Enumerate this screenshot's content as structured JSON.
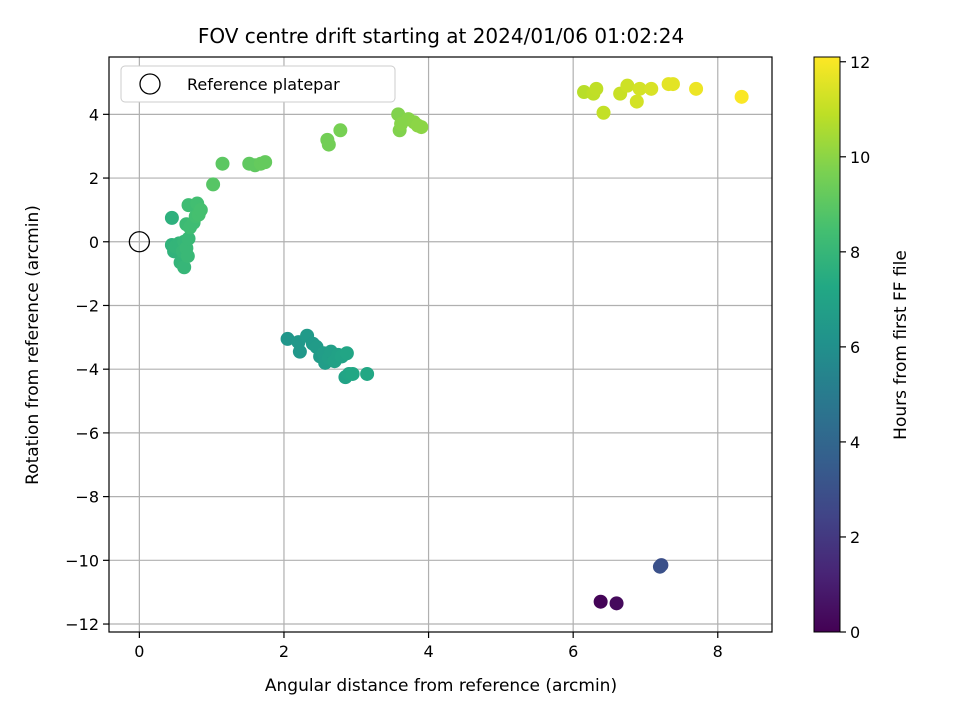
{
  "chart_data": {
    "type": "scatter",
    "title": "FOV centre drift starting at 2024/01/06 01:02:24",
    "xlabel": "Angular distance from reference (arcmin)",
    "ylabel": "Rotation from reference (arcmin)",
    "xlim": [
      -0.42,
      8.75
    ],
    "ylim": [
      -12.25,
      5.8
    ],
    "xticks": [
      0,
      2,
      4,
      6,
      8
    ],
    "yticks": [
      4,
      2,
      0,
      -2,
      -4,
      -6,
      -8,
      -10,
      -12
    ],
    "grid": true,
    "legend": {
      "placement": "upper-left",
      "entries": [
        "Reference platepar"
      ]
    },
    "reference_point": {
      "x": 0,
      "y": 0,
      "label": "Reference platepar"
    },
    "colorbar": {
      "label": "Hours from first FF file",
      "range": [
        0,
        12.1
      ],
      "ticks": [
        0,
        2,
        4,
        6,
        8,
        10,
        12
      ],
      "colormap": "viridis"
    },
    "points": [
      {
        "x": 6.38,
        "y": -11.3,
        "c": 0.1
      },
      {
        "x": 6.6,
        "y": -11.35,
        "c": 0.3
      },
      {
        "x": 7.22,
        "y": -10.15,
        "c": 2.9
      },
      {
        "x": 7.2,
        "y": -10.2,
        "c": 3.0
      },
      {
        "x": 2.05,
        "y": -3.05,
        "c": 6.3
      },
      {
        "x": 2.2,
        "y": -3.15,
        "c": 6.4
      },
      {
        "x": 2.22,
        "y": -3.45,
        "c": 6.4
      },
      {
        "x": 2.32,
        "y": -2.95,
        "c": 6.5
      },
      {
        "x": 2.4,
        "y": -3.2,
        "c": 6.5
      },
      {
        "x": 2.45,
        "y": -3.3,
        "c": 6.6
      },
      {
        "x": 2.5,
        "y": -3.6,
        "c": 6.6
      },
      {
        "x": 2.55,
        "y": -3.5,
        "c": 6.7
      },
      {
        "x": 2.57,
        "y": -3.8,
        "c": 6.7
      },
      {
        "x": 2.62,
        "y": -3.65,
        "c": 6.8
      },
      {
        "x": 2.65,
        "y": -3.45,
        "c": 6.8
      },
      {
        "x": 2.7,
        "y": -3.75,
        "c": 6.9
      },
      {
        "x": 2.75,
        "y": -3.55,
        "c": 6.9
      },
      {
        "x": 2.8,
        "y": -3.6,
        "c": 7.0
      },
      {
        "x": 2.85,
        "y": -4.25,
        "c": 7.0
      },
      {
        "x": 2.87,
        "y": -3.5,
        "c": 7.1
      },
      {
        "x": 2.9,
        "y": -4.15,
        "c": 7.1
      },
      {
        "x": 2.95,
        "y": -4.15,
        "c": 7.2
      },
      {
        "x": 3.15,
        "y": -4.15,
        "c": 7.2
      },
      {
        "x": 0.45,
        "y": 0.75,
        "c": 7.7
      },
      {
        "x": 0.45,
        "y": -0.1,
        "c": 7.8
      },
      {
        "x": 0.48,
        "y": -0.3,
        "c": 7.8
      },
      {
        "x": 0.5,
        "y": -0.15,
        "c": 7.9
      },
      {
        "x": 0.55,
        "y": -0.05,
        "c": 7.9
      },
      {
        "x": 0.57,
        "y": -0.65,
        "c": 7.9
      },
      {
        "x": 0.6,
        "y": -0.3,
        "c": 8.0
      },
      {
        "x": 0.62,
        "y": -0.8,
        "c": 8.0
      },
      {
        "x": 0.62,
        "y": 0.0,
        "c": 8.0
      },
      {
        "x": 0.65,
        "y": -0.2,
        "c": 8.1
      },
      {
        "x": 0.67,
        "y": -0.45,
        "c": 8.1
      },
      {
        "x": 0.68,
        "y": 0.1,
        "c": 8.1
      },
      {
        "x": 0.65,
        "y": 0.55,
        "c": 8.2
      },
      {
        "x": 0.68,
        "y": 1.15,
        "c": 8.3
      },
      {
        "x": 0.7,
        "y": 0.45,
        "c": 8.3
      },
      {
        "x": 0.75,
        "y": 0.6,
        "c": 8.3
      },
      {
        "x": 0.78,
        "y": 0.8,
        "c": 8.4
      },
      {
        "x": 0.8,
        "y": 1.2,
        "c": 8.4
      },
      {
        "x": 0.82,
        "y": 0.85,
        "c": 8.5
      },
      {
        "x": 0.85,
        "y": 1.0,
        "c": 8.5
      },
      {
        "x": 1.02,
        "y": 1.8,
        "c": 8.9
      },
      {
        "x": 1.15,
        "y": 2.45,
        "c": 9.0
      },
      {
        "x": 1.52,
        "y": 2.45,
        "c": 9.1
      },
      {
        "x": 1.6,
        "y": 2.4,
        "c": 9.1
      },
      {
        "x": 1.68,
        "y": 2.45,
        "c": 9.2
      },
      {
        "x": 1.74,
        "y": 2.5,
        "c": 9.2
      },
      {
        "x": 2.6,
        "y": 3.2,
        "c": 9.5
      },
      {
        "x": 2.62,
        "y": 3.05,
        "c": 9.5
      },
      {
        "x": 2.78,
        "y": 3.5,
        "c": 9.6
      },
      {
        "x": 3.58,
        "y": 4.0,
        "c": 9.8
      },
      {
        "x": 3.6,
        "y": 3.5,
        "c": 9.8
      },
      {
        "x": 3.62,
        "y": 3.7,
        "c": 9.9
      },
      {
        "x": 3.72,
        "y": 3.85,
        "c": 9.9
      },
      {
        "x": 3.8,
        "y": 3.75,
        "c": 9.95
      },
      {
        "x": 3.85,
        "y": 3.65,
        "c": 10.0
      },
      {
        "x": 3.9,
        "y": 3.6,
        "c": 10.0
      },
      {
        "x": 6.15,
        "y": 4.7,
        "c": 10.8
      },
      {
        "x": 6.28,
        "y": 4.65,
        "c": 10.9
      },
      {
        "x": 6.32,
        "y": 4.8,
        "c": 10.95
      },
      {
        "x": 6.42,
        "y": 4.05,
        "c": 11.0
      },
      {
        "x": 6.65,
        "y": 4.65,
        "c": 11.1
      },
      {
        "x": 6.75,
        "y": 4.9,
        "c": 11.2
      },
      {
        "x": 6.88,
        "y": 4.4,
        "c": 11.3
      },
      {
        "x": 6.92,
        "y": 4.8,
        "c": 11.3
      },
      {
        "x": 7.08,
        "y": 4.8,
        "c": 11.4
      },
      {
        "x": 7.32,
        "y": 4.95,
        "c": 11.6
      },
      {
        "x": 7.38,
        "y": 4.95,
        "c": 11.6
      },
      {
        "x": 7.7,
        "y": 4.8,
        "c": 11.8
      },
      {
        "x": 8.33,
        "y": 4.55,
        "c": 12.05
      }
    ]
  }
}
